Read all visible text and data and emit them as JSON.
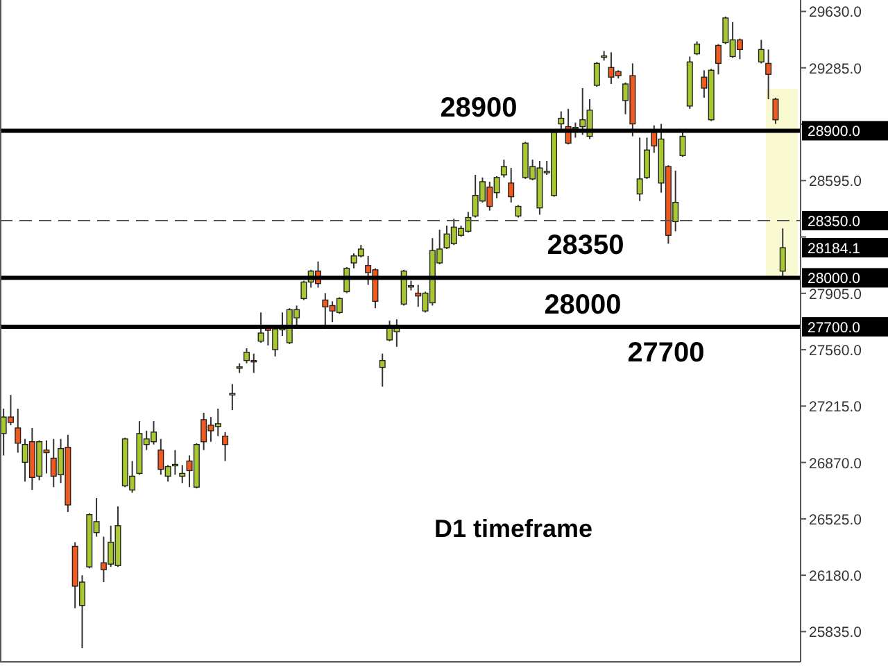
{
  "chart_data": {
    "type": "candlestick",
    "categories": [
      null,
      null,
      null,
      null,
      null,
      null,
      null,
      null,
      null,
      null,
      null,
      null,
      null,
      null,
      null,
      null,
      null,
      null,
      null,
      null,
      null,
      null,
      null,
      null,
      null,
      null,
      null,
      null,
      null,
      null,
      null,
      null,
      null,
      null,
      null,
      null,
      null,
      null,
      null,
      null,
      null,
      null,
      null,
      null,
      null,
      null,
      null,
      null,
      null,
      null,
      null,
      null,
      null,
      null,
      null,
      null,
      null,
      null,
      null,
      null,
      null,
      null,
      null,
      null,
      null,
      null,
      null,
      null,
      null,
      null,
      null,
      null,
      null,
      null,
      null,
      null,
      null,
      null,
      null,
      null,
      null,
      null,
      null,
      null,
      null,
      null,
      null,
      null,
      null,
      null,
      null,
      null,
      null,
      null,
      null,
      null,
      null,
      null,
      null,
      null,
      null,
      null,
      null,
      null,
      null,
      null,
      null,
      null,
      null,
      null,
      null,
      null
    ],
    "ohlc": [
      [
        27047,
        27199,
        26913,
        27148
      ],
      [
        27148,
        27283,
        27098,
        27115
      ],
      [
        27081,
        27199,
        26930,
        26988
      ],
      [
        26871,
        27014,
        26753,
        26980
      ],
      [
        26997,
        27081,
        26702,
        26778
      ],
      [
        26786,
        27005,
        26761,
        26997
      ],
      [
        26946,
        27005,
        26803,
        26930
      ],
      [
        26896,
        27014,
        26719,
        26786
      ],
      [
        26795,
        27014,
        26744,
        26955
      ],
      [
        26963,
        27039,
        26567,
        26610
      ],
      [
        26357,
        26382,
        25978,
        26113
      ],
      [
        25995,
        26180,
        25734,
        26138
      ],
      [
        26231,
        26559,
        26222,
        26551
      ],
      [
        26441,
        26652,
        26416,
        26508
      ],
      [
        26256,
        26416,
        26138,
        26214
      ],
      [
        26248,
        26483,
        26231,
        26382
      ],
      [
        26239,
        26601,
        26231,
        26483
      ],
      [
        26727,
        27022,
        26719,
        27014
      ],
      [
        26702,
        26879,
        26685,
        26786
      ],
      [
        26803,
        27123,
        26795,
        27047
      ],
      [
        26980,
        27064,
        26946,
        27014
      ],
      [
        26997,
        27123,
        26980,
        27056
      ],
      [
        26946,
        27014,
        26795,
        26828
      ],
      [
        26786,
        26854,
        26753,
        26845
      ],
      [
        26854,
        26946,
        26795,
        26858
      ],
      [
        26786,
        26854,
        26744,
        26803
      ],
      [
        26879,
        26913,
        26719,
        26820
      ],
      [
        26719,
        26988,
        26711,
        26980
      ],
      [
        27132,
        27174,
        26946,
        26997
      ],
      [
        27098,
        27148,
        26997,
        27064
      ],
      [
        27090,
        27199,
        27031,
        27107
      ],
      [
        27031,
        27056,
        26879,
        26980
      ],
      [
        27283,
        27350,
        27191,
        27292
      ],
      [
        27452,
        27477,
        27418,
        27455
      ],
      [
        27494,
        27569,
        27477,
        27544
      ],
      [
        27494,
        27536,
        27418,
        27490
      ],
      [
        27612,
        27788,
        27603,
        27662
      ],
      [
        27696,
        27713,
        27586,
        27679
      ],
      [
        27561,
        27704,
        27519,
        27687
      ],
      [
        27687,
        27788,
        27645,
        27690
      ],
      [
        27603,
        27814,
        27595,
        27805
      ],
      [
        27755,
        27830,
        27696,
        27805
      ],
      [
        27873,
        27982,
        27864,
        27974
      ],
      [
        27974,
        28049,
        27940,
        28041
      ],
      [
        28041,
        28100,
        27940,
        27965
      ],
      [
        27864,
        27906,
        27687,
        27822
      ],
      [
        27830,
        27856,
        27729,
        27797
      ],
      [
        27788,
        27881,
        27780,
        27873
      ],
      [
        27915,
        28066,
        27906,
        28058
      ],
      [
        28091,
        28150,
        28058,
        28134
      ],
      [
        28134,
        28201,
        28125,
        28176
      ],
      [
        28075,
        28134,
        27957,
        28032
      ],
      [
        28049,
        28058,
        27814,
        27856
      ],
      [
        27452,
        27536,
        27334,
        27494
      ],
      [
        27620,
        27738,
        27612,
        27704
      ],
      [
        27670,
        27746,
        27578,
        27704
      ],
      [
        27839,
        28049,
        27830,
        28041
      ],
      [
        27948,
        27982,
        27923,
        27952
      ],
      [
        27906,
        27957,
        27822,
        27889
      ],
      [
        27797,
        27915,
        27788,
        27906
      ],
      [
        27847,
        28243,
        27830,
        28167
      ],
      [
        28091,
        28294,
        28083,
        28176
      ],
      [
        28184,
        28319,
        28176,
        28268
      ],
      [
        28209,
        28361,
        28201,
        28310
      ],
      [
        28260,
        28319,
        28251,
        28302
      ],
      [
        28285,
        28403,
        28277,
        28369
      ],
      [
        28378,
        28630,
        28369,
        28504
      ],
      [
        28470,
        28614,
        28461,
        28588
      ],
      [
        28555,
        28588,
        28411,
        28437
      ],
      [
        28521,
        28622,
        28487,
        28614
      ],
      [
        28630,
        28723,
        28614,
        28681
      ],
      [
        28580,
        28672,
        28461,
        28496
      ],
      [
        28378,
        28445,
        28369,
        28437
      ],
      [
        28614,
        28832,
        28605,
        28824
      ],
      [
        28605,
        28723,
        28597,
        28681
      ],
      [
        28428,
        28715,
        28386,
        28672
      ],
      [
        28647,
        28715,
        28630,
        28651
      ],
      [
        28504,
        28900,
        28496,
        28891
      ],
      [
        28942,
        29018,
        28908,
        28976
      ],
      [
        28925,
        29034,
        28816,
        28824
      ],
      [
        28917,
        28950,
        28858,
        28920
      ],
      [
        28925,
        29161,
        28875,
        28967
      ],
      [
        28866,
        29093,
        28849,
        29026
      ],
      [
        29178,
        29321,
        29169,
        29312
      ],
      [
        29354,
        29388,
        29329,
        29358
      ],
      [
        29287,
        29380,
        29186,
        29228
      ],
      [
        29262,
        29270,
        29220,
        29237
      ],
      [
        29085,
        29195,
        29001,
        29186
      ],
      [
        29237,
        29312,
        28866,
        28942
      ],
      [
        28513,
        28858,
        28470,
        28605
      ],
      [
        28614,
        28858,
        28605,
        28782
      ],
      [
        28891,
        28933,
        28765,
        28807
      ],
      [
        28580,
        28942,
        28521,
        28849
      ],
      [
        28681,
        28689,
        28209,
        28260
      ],
      [
        28344,
        28656,
        28285,
        28462
      ],
      [
        28748,
        28908,
        28740,
        28866
      ],
      [
        29051,
        29354,
        29034,
        29321
      ],
      [
        29371,
        29447,
        29363,
        29430
      ],
      [
        29228,
        29270,
        29102,
        29161
      ],
      [
        28967,
        29279,
        28959,
        29270
      ],
      [
        29422,
        29430,
        29245,
        29312
      ],
      [
        29439,
        29599,
        29430,
        29590
      ],
      [
        29354,
        29565,
        29346,
        29456
      ],
      [
        29456,
        29464,
        29338,
        29397
      ],
      null,
      null,
      [
        29321,
        29456,
        29312,
        29397
      ],
      [
        29312,
        29397,
        29093,
        29245
      ],
      [
        29093,
        29102,
        28942,
        28967
      ],
      [
        28041,
        28302,
        27990,
        28184.1
      ],
      null,
      null
    ],
    "colors": [
      "#a8c832",
      "#f05a1e",
      "#f05a1e",
      "#a8c832",
      "#f05a1e",
      "#a8c832",
      "#f05a1e",
      "#f05a1e",
      "#a8c832",
      "#f05a1e",
      "#f05a1e",
      "#a8c832",
      "#a8c832",
      "#a8c832",
      "#f05a1e",
      "#a8c832",
      "#a8c832",
      "#a8c832",
      "#a8c832",
      "#a8c832",
      "#a8c832",
      "#a8c832",
      "#f05a1e",
      "#a8c832",
      "#a8c832",
      "#a8c832",
      "#f05a1e",
      "#a8c832",
      "#f05a1e",
      "#f05a1e",
      "#a8c832",
      "#f05a1e",
      "#a8c832",
      "#a8c832",
      "#a8c832",
      "#f05a1e",
      "#a8c832",
      "#f05a1e",
      "#a8c832",
      "#a8c832",
      "#a8c832",
      "#a8c832",
      "#a8c832",
      "#a8c832",
      "#f05a1e",
      "#f05a1e",
      "#f05a1e",
      "#a8c832",
      "#a8c832",
      "#a8c832",
      "#a8c832",
      "#f05a1e",
      "#f05a1e",
      "#a8c832",
      "#a8c832",
      "#a8c832",
      "#a8c832",
      "#a8c832",
      "#f05a1e",
      "#a8c832",
      "#a8c832",
      "#a8c832",
      "#a8c832",
      "#a8c832",
      "#a8c832",
      "#a8c832",
      "#a8c832",
      "#a8c832",
      "#f05a1e",
      "#a8c832",
      "#a8c832",
      "#f05a1e",
      "#a8c832",
      "#a8c832",
      "#a8c832",
      "#a8c832",
      "#a8c832",
      "#a8c832",
      "#a8c832",
      "#f05a1e",
      "#a8c832",
      "#a8c832",
      "#a8c832",
      "#a8c832",
      "#a8c832",
      "#f05a1e",
      "#f05a1e",
      "#a8c832",
      "#f05a1e",
      "#a8c832",
      "#a8c832",
      "#f05a1e",
      "#a8c832",
      "#f05a1e",
      "#a8c832",
      "#a8c832",
      "#a8c832",
      "#a8c832",
      "#f05a1e",
      "#a8c832",
      "#f05a1e",
      "#a8c832",
      "#a8c832",
      "#f05a1e",
      null,
      null,
      "#a8c832",
      "#f05a1e",
      "#f05a1e",
      "#a8c832",
      null,
      null
    ],
    "ylim": [
      25650,
      29700
    ],
    "yticks": [
      {
        "value": 25835,
        "label": "25835.0"
      },
      {
        "value": 26180,
        "label": "26180.0"
      },
      {
        "value": 26525,
        "label": "26525.0"
      },
      {
        "value": 26870,
        "label": "26870.0"
      },
      {
        "value": 27215,
        "label": "27215.0"
      },
      {
        "value": 27560,
        "label": "27560.0"
      },
      {
        "value": 27905,
        "label": "27905.0"
      },
      {
        "value": 28250,
        "label": null
      },
      {
        "value": 28595,
        "label": "28595.0"
      },
      {
        "value": 28940,
        "label": null
      },
      {
        "value": 29285,
        "label": "29285.0"
      },
      {
        "value": 29630,
        "label": "29630.0"
      }
    ],
    "tick_labels": "y",
    "grid": false,
    "ref_lines": [
      {
        "axis": "y",
        "value": 28900,
        "label": "28900",
        "color": "#000000",
        "line_style": "solid"
      },
      {
        "axis": "y",
        "value": 28350,
        "label": "28350",
        "color": "#555555",
        "line_style": "dashed"
      },
      {
        "axis": "y",
        "value": 28000,
        "label": "28000",
        "color": "#000000",
        "line_style": "solid"
      },
      {
        "axis": "y",
        "value": 27700,
        "label": "27700",
        "color": "#000000",
        "line_style": "solid"
      }
    ],
    "annotations": [
      "D1 timeframe",
      "28900.0",
      "28350.0",
      "28184.1",
      "28000.0",
      "27700.0"
    ]
  }
}
